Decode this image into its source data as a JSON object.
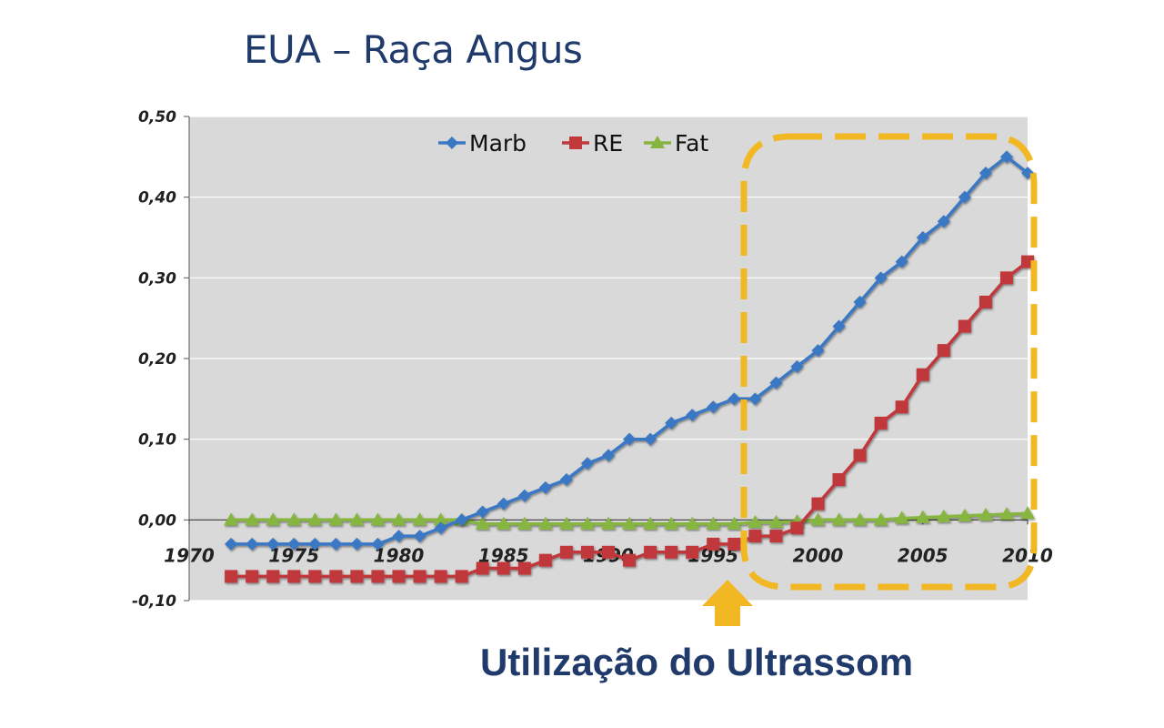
{
  "title": "EUA – Raça Angus",
  "caption": "Utilização do Ultrassom",
  "colors": {
    "title": "#1f3a6b",
    "highlight": "#f2b824",
    "plot_bg": "#d9d9d9"
  },
  "chart_data": {
    "type": "line",
    "title": "",
    "xlabel": "",
    "ylabel": "",
    "xlim": [
      1970,
      2010
    ],
    "ylim": [
      -0.1,
      0.5
    ],
    "x_ticks": [
      "1970",
      "1975",
      "1980",
      "1985",
      "1990",
      "1995",
      "2000",
      "2005",
      "2010"
    ],
    "y_ticks": [
      "-0,10",
      "0,00",
      "0,10",
      "0,20",
      "0,30",
      "0,40",
      "0,50"
    ],
    "grid": true,
    "legend_position": "top-center",
    "x": [
      1972,
      1973,
      1974,
      1975,
      1976,
      1977,
      1978,
      1979,
      1980,
      1981,
      1982,
      1983,
      1984,
      1985,
      1986,
      1987,
      1988,
      1989,
      1990,
      1991,
      1992,
      1993,
      1994,
      1995,
      1996,
      1997,
      1998,
      1999,
      2000,
      2001,
      2002,
      2003,
      2004,
      2005,
      2006,
      2007,
      2008,
      2009,
      2010
    ],
    "series": [
      {
        "name": "Marb",
        "color": "#3b78c4",
        "marker": "diamond",
        "values": [
          -0.03,
          -0.03,
          -0.03,
          -0.03,
          -0.03,
          -0.03,
          -0.03,
          -0.03,
          -0.02,
          -0.02,
          -0.01,
          0.0,
          0.01,
          0.02,
          0.03,
          0.04,
          0.05,
          0.07,
          0.08,
          0.1,
          0.1,
          0.12,
          0.13,
          0.14,
          0.15,
          0.15,
          0.17,
          0.19,
          0.21,
          0.24,
          0.27,
          0.3,
          0.32,
          0.35,
          0.37,
          0.4,
          0.43,
          0.45,
          0.43
        ]
      },
      {
        "name": "RE",
        "color": "#c0393b",
        "marker": "square",
        "values": [
          -0.07,
          -0.07,
          -0.07,
          -0.07,
          -0.07,
          -0.07,
          -0.07,
          -0.07,
          -0.07,
          -0.07,
          -0.07,
          -0.07,
          -0.06,
          -0.06,
          -0.06,
          -0.05,
          -0.04,
          -0.04,
          -0.04,
          -0.05,
          -0.04,
          -0.04,
          -0.04,
          -0.03,
          -0.03,
          -0.02,
          -0.02,
          -0.01,
          0.02,
          0.05,
          0.08,
          0.12,
          0.14,
          0.18,
          0.21,
          0.24,
          0.27,
          0.3,
          0.32
        ]
      },
      {
        "name": "Fat",
        "color": "#86b53f",
        "marker": "triangle",
        "values": [
          0,
          0,
          0,
          0,
          0,
          0,
          0,
          0,
          0,
          0,
          0,
          0,
          -0.005,
          -0.005,
          -0.005,
          -0.005,
          -0.005,
          -0.005,
          -0.005,
          -0.005,
          -0.005,
          -0.005,
          -0.005,
          -0.005,
          -0.005,
          -0.003,
          -0.003,
          -0.002,
          0,
          0,
          0,
          0,
          0.002,
          0.003,
          0.004,
          0.005,
          0.006,
          0.007,
          0.008
        ]
      }
    ]
  }
}
